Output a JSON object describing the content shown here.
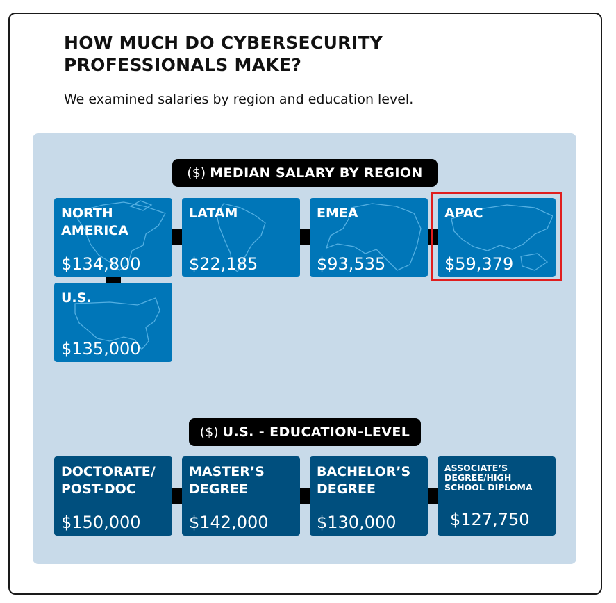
{
  "header": {
    "title": "HOW MUCH DO CYBERSECURITY PROFESSIONALS MAKE?",
    "subtitle": "We examined salaries by region and education level."
  },
  "colors": {
    "region_tile": "#0076b8",
    "education_tile": "#004f7e",
    "panel": "#c8dae9",
    "highlight_border": "#e01e1e"
  },
  "chart_data": [
    {
      "type": "table",
      "title_unit": "($)",
      "title": "MEDIAN SALARY BY REGION",
      "categories": [
        "NORTH AMERICA",
        "LATAM",
        "EMEA",
        "APAC",
        "U.S."
      ],
      "values": [
        134800,
        22185,
        93535,
        59379,
        135000
      ],
      "labels": [
        "$134,800",
        "$22,185",
        "$93,535",
        "$59,379",
        "$135,000"
      ],
      "map_icons": [
        "north-america-map-icon",
        "south-america-map-icon",
        "europe-africa-map-icon",
        "asia-pacific-map-icon",
        "usa-map-icon"
      ],
      "highlighted": "APAC"
    },
    {
      "type": "table",
      "title_unit": "($)",
      "title": "U.S. - EDUCATION-LEVEL",
      "categories": [
        "DOCTORATE/ POST-DOC",
        "MASTER'S DEGREE",
        "BACHELOR'S DEGREE",
        "ASSOCIATE'S DEGREE/HIGH SCHOOL DIPLOMA"
      ],
      "display_names": [
        "DOCTORATE/\nPOST-DOC",
        "MASTER’S\nDEGREE",
        "BACHELOR’S\nDEGREE",
        "ASSOCIATE’S\nDEGREE/HIGH\nSCHOOL DIPLOMA"
      ],
      "values": [
        150000,
        142000,
        130000,
        127750
      ],
      "labels": [
        "$150,000",
        "$142,000",
        "$130,000",
        "$127,750"
      ]
    }
  ]
}
